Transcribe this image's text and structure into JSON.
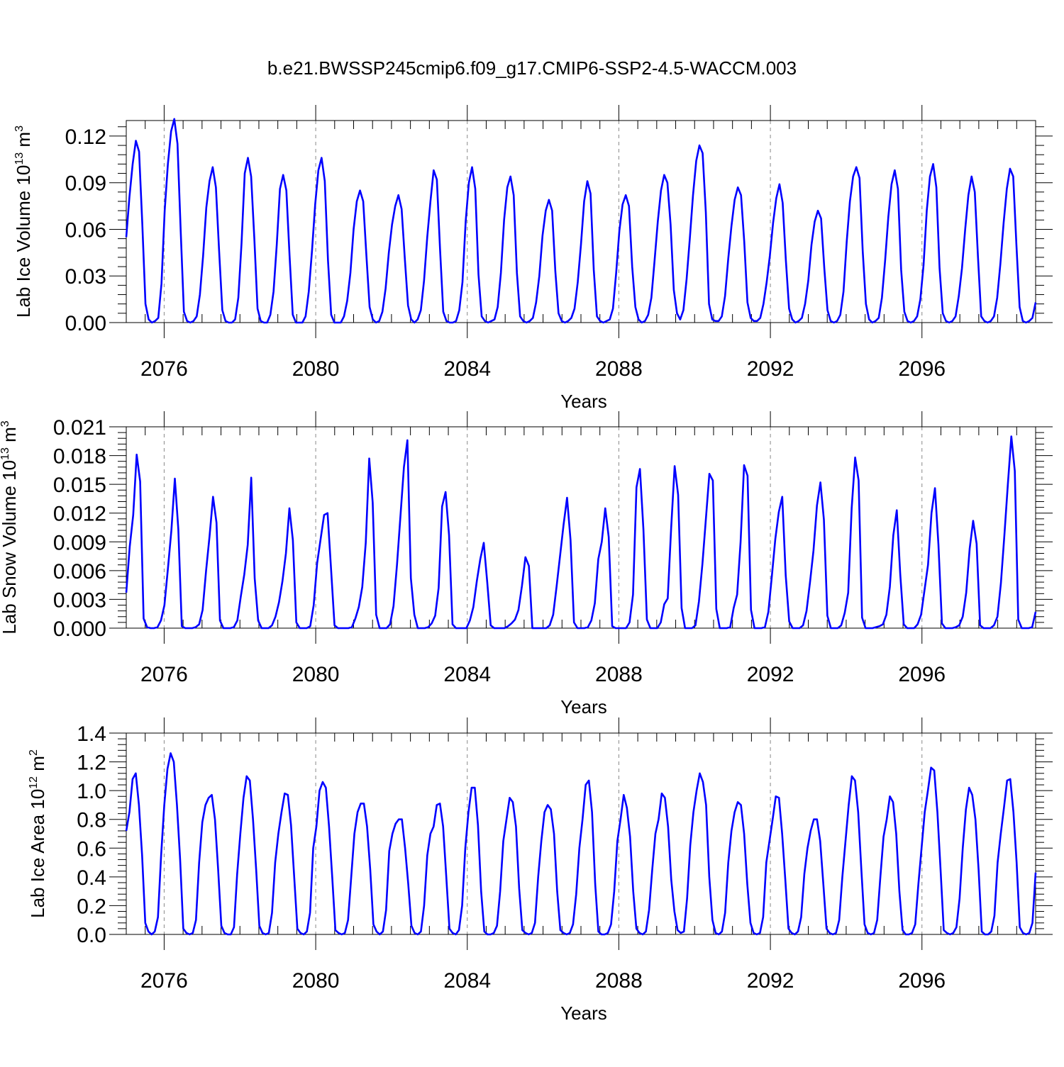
{
  "title": "b.e21.BWSSP245cmip6.f09_g17.CMIP6-SSP2-4.5-WACCM.003",
  "colors": {
    "series": "#0000ff",
    "axis": "#000000",
    "grid": "#888888"
  },
  "chart_data": [
    {
      "type": "line",
      "ylabel_main": "Lab Ice Volume 10",
      "ylabel_exp": "13",
      "ylabel_unit": " m",
      "ylabel_unit_exp": "3",
      "xlabel": "Years",
      "xlim": [
        2075.0,
        2099.0
      ],
      "ylim": [
        0,
        0.13
      ],
      "yticks": [
        0,
        0.03,
        0.06,
        0.09,
        0.12
      ],
      "ytick_labels": [
        "0.00",
        "0.03",
        "0.06",
        "0.09",
        "0.12"
      ],
      "xticks": [
        2076,
        2080,
        2084,
        2088,
        2092,
        2096
      ],
      "xtick_labels": [
        "2076",
        "2080",
        "2084",
        "2088",
        "2092",
        "2096"
      ],
      "grid_vertical": true,
      "series": [
        {
          "values": [
            0.055,
            0.081,
            0.102,
            0.117,
            0.11,
            0.064,
            0.012,
            0.002,
            0.0,
            0.001,
            0.003,
            0.025,
            0.072,
            0.102,
            0.123,
            0.131,
            0.115,
            0.059,
            0.007,
            0.001,
            0.0,
            0.001,
            0.004,
            0.018,
            0.043,
            0.074,
            0.091,
            0.1,
            0.087,
            0.046,
            0.008,
            0.001,
            0.0,
            0.0,
            0.002,
            0.016,
            0.051,
            0.096,
            0.106,
            0.094,
            0.054,
            0.009,
            0.001,
            0.0,
            0.0,
            0.005,
            0.02,
            0.05,
            0.086,
            0.095,
            0.085,
            0.043,
            0.005,
            0.0,
            0.0,
            0.0,
            0.004,
            0.02,
            0.046,
            0.076,
            0.098,
            0.106,
            0.091,
            0.04,
            0.005,
            0.0,
            0.0,
            0.0,
            0.004,
            0.014,
            0.032,
            0.06,
            0.078,
            0.085,
            0.078,
            0.043,
            0.01,
            0.002,
            0.0,
            0.001,
            0.007,
            0.022,
            0.045,
            0.063,
            0.075,
            0.082,
            0.073,
            0.041,
            0.011,
            0.002,
            0.0,
            0.002,
            0.008,
            0.027,
            0.055,
            0.078,
            0.098,
            0.092,
            0.047,
            0.007,
            0.001,
            0.0,
            0.0,
            0.001,
            0.008,
            0.026,
            0.065,
            0.09,
            0.1,
            0.086,
            0.031,
            0.004,
            0.001,
            0.0,
            0.001,
            0.002,
            0.01,
            0.032,
            0.066,
            0.087,
            0.094,
            0.082,
            0.032,
            0.004,
            0.001,
            0.0,
            0.001,
            0.003,
            0.013,
            0.03,
            0.056,
            0.072,
            0.079,
            0.072,
            0.033,
            0.006,
            0.001,
            0.0,
            0.001,
            0.003,
            0.009,
            0.026,
            0.05,
            0.078,
            0.091,
            0.083,
            0.034,
            0.004,
            0.001,
            0.0,
            0.001,
            0.002,
            0.009,
            0.032,
            0.059,
            0.076,
            0.082,
            0.075,
            0.036,
            0.01,
            0.002,
            0.0,
            0.001,
            0.005,
            0.016,
            0.04,
            0.065,
            0.085,
            0.095,
            0.09,
            0.063,
            0.021,
            0.006,
            0.002,
            0.008,
            0.028,
            0.054,
            0.082,
            0.104,
            0.114,
            0.109,
            0.071,
            0.012,
            0.002,
            0.001,
            0.001,
            0.004,
            0.017,
            0.041,
            0.062,
            0.079,
            0.087,
            0.082,
            0.052,
            0.013,
            0.003,
            0.001,
            0.001,
            0.003,
            0.012,
            0.026,
            0.043,
            0.064,
            0.08,
            0.089,
            0.077,
            0.04,
            0.009,
            0.002,
            0.0,
            0.001,
            0.003,
            0.012,
            0.027,
            0.05,
            0.065,
            0.072,
            0.067,
            0.035,
            0.008,
            0.001,
            0.0,
            0.001,
            0.005,
            0.02,
            0.052,
            0.078,
            0.094,
            0.1,
            0.093,
            0.046,
            0.012,
            0.002,
            0.0,
            0.001,
            0.003,
            0.016,
            0.04,
            0.068,
            0.089,
            0.098,
            0.086,
            0.034,
            0.007,
            0.001,
            0.0,
            0.001,
            0.004,
            0.015,
            0.037,
            0.072,
            0.094,
            0.102,
            0.087,
            0.035,
            0.006,
            0.001,
            0.0,
            0.001,
            0.004,
            0.017,
            0.035,
            0.06,
            0.082,
            0.094,
            0.084,
            0.042,
            0.004,
            0.001,
            0.0,
            0.001,
            0.004,
            0.016,
            0.038,
            0.064,
            0.086,
            0.099,
            0.094,
            0.05,
            0.01,
            0.001,
            0.0,
            0.001,
            0.003,
            0.013
          ]
        }
      ]
    },
    {
      "type": "line",
      "ylabel_main": "Lab Snow Volume 10",
      "ylabel_exp": "13",
      "ylabel_unit": " m",
      "ylabel_unit_exp": "3",
      "xlabel": "Years",
      "xlim": [
        2075.0,
        2099.0
      ],
      "ylim": [
        0,
        0.021
      ],
      "yticks": [
        0,
        0.003,
        0.006,
        0.009,
        0.012,
        0.015,
        0.018,
        0.021
      ],
      "ytick_labels": [
        "0.000",
        "0.003",
        "0.006",
        "0.009",
        "0.012",
        "0.015",
        "0.018",
        "0.021"
      ],
      "xticks": [
        2076,
        2080,
        2084,
        2088,
        2092,
        2096
      ],
      "xtick_labels": [
        "2076",
        "2080",
        "2084",
        "2088",
        "2092",
        "2096"
      ],
      "grid_vertical": true,
      "series": [
        {
          "values": [
            0.0037,
            0.0085,
            0.0118,
            0.0181,
            0.0153,
            0.001,
            0.0001,
            0.0,
            0.0,
            0.0001,
            0.0008,
            0.0024,
            0.0062,
            0.0102,
            0.0156,
            0.0103,
            0.0002,
            0.0,
            0.0,
            0.0,
            0.0001,
            0.0004,
            0.0019,
            0.006,
            0.0096,
            0.0137,
            0.011,
            0.0008,
            0.0,
            0.0,
            0.0,
            0.0001,
            0.0008,
            0.0033,
            0.0056,
            0.0087,
            0.0157,
            0.0052,
            0.0008,
            0.0,
            0.0,
            0.0,
            0.0003,
            0.0012,
            0.0027,
            0.0049,
            0.0078,
            0.0125,
            0.0092,
            0.0006,
            0.0,
            0.0,
            0.0,
            0.0002,
            0.0024,
            0.0068,
            0.0093,
            0.0118,
            0.012,
            0.0062,
            0.0003,
            0.0,
            0.0,
            0.0,
            0.0,
            0.0001,
            0.001,
            0.0022,
            0.0043,
            0.0089,
            0.0177,
            0.0131,
            0.0014,
            0.0,
            0.0,
            0.0,
            0.0004,
            0.0023,
            0.0066,
            0.0117,
            0.0168,
            0.0196,
            0.0052,
            0.0014,
            0.0,
            0.0,
            0.0,
            0.0001,
            0.0005,
            0.0013,
            0.0042,
            0.0127,
            0.0142,
            0.0097,
            0.0004,
            0.0,
            0.0,
            0.0,
            0.0,
            0.0008,
            0.0022,
            0.0049,
            0.0072,
            0.0089,
            0.0048,
            0.0003,
            0.0,
            0.0,
            0.0,
            0.0,
            0.0002,
            0.0005,
            0.0009,
            0.0019,
            0.0044,
            0.0074,
            0.0065,
            0.0,
            0.0,
            0.0,
            0.0,
            0.0,
            0.0003,
            0.0014,
            0.0044,
            0.0076,
            0.0108,
            0.0136,
            0.0092,
            0.0006,
            0.0,
            0.0,
            0.0,
            0.0001,
            0.0008,
            0.0026,
            0.0072,
            0.009,
            0.0125,
            0.0095,
            0.0002,
            0.0,
            0.0,
            0.0,
            0.0,
            0.0006,
            0.0035,
            0.0147,
            0.0166,
            0.0103,
            0.0009,
            0.0,
            0.0,
            0.0,
            0.0006,
            0.0025,
            0.0031,
            0.0105,
            0.0169,
            0.0139,
            0.0021,
            0.0,
            0.0,
            0.0,
            0.0003,
            0.0028,
            0.0067,
            0.0114,
            0.0161,
            0.0154,
            0.002,
            0.0,
            0.0,
            0.0,
            0.0001,
            0.0021,
            0.0035,
            0.009,
            0.017,
            0.0159,
            0.0019,
            0.0,
            0.0,
            0.0,
            0.0001,
            0.0017,
            0.0054,
            0.0093,
            0.0121,
            0.0137,
            0.0055,
            0.0007,
            0.0,
            0.0,
            0.0,
            0.0003,
            0.0018,
            0.0048,
            0.0081,
            0.0128,
            0.0152,
            0.0113,
            0.0013,
            0.0,
            0.0,
            0.0,
            0.0003,
            0.0016,
            0.0037,
            0.0125,
            0.0178,
            0.0154,
            0.0011,
            0.0,
            0.0,
            0.0,
            0.0001,
            0.0002,
            0.0004,
            0.0014,
            0.0043,
            0.0097,
            0.0123,
            0.0056,
            0.0004,
            0.0,
            0.0,
            0.0,
            0.0004,
            0.0014,
            0.004,
            0.0066,
            0.012,
            0.0146,
            0.0087,
            0.0005,
            0.0,
            0.0,
            0.0,
            0.0001,
            0.0003,
            0.0012,
            0.0037,
            0.0083,
            0.0112,
            0.0088,
            0.0003,
            0.0,
            0.0,
            0.0,
            0.0003,
            0.0012,
            0.0047,
            0.0097,
            0.015,
            0.02,
            0.0164,
            0.0009,
            0.0,
            0.0,
            0.0,
            0.0001,
            0.0017
          ]
        }
      ]
    },
    {
      "type": "line",
      "ylabel_main": "Lab Ice Area 10",
      "ylabel_exp": "12",
      "ylabel_unit": " m",
      "ylabel_unit_exp": "2",
      "xlabel": "Years",
      "xlim": [
        2075.0,
        2099.0
      ],
      "ylim": [
        0,
        1.4
      ],
      "yticks": [
        0,
        0.2,
        0.4,
        0.6,
        0.8,
        1.0,
        1.2,
        1.4
      ],
      "ytick_labels": [
        "0.0",
        "0.2",
        "0.4",
        "0.6",
        "0.8",
        "1.0",
        "1.2",
        "1.4"
      ],
      "xticks": [
        2076,
        2080,
        2084,
        2088,
        2092,
        2096
      ],
      "xtick_labels": [
        "2076",
        "2080",
        "2084",
        "2088",
        "2092",
        "2096"
      ],
      "grid_vertical": true,
      "series": [
        {
          "values": [
            0.72,
            0.85,
            1.08,
            1.12,
            0.9,
            0.55,
            0.08,
            0.02,
            0.0,
            0.02,
            0.12,
            0.55,
            0.9,
            1.15,
            1.26,
            1.2,
            0.9,
            0.52,
            0.04,
            0.01,
            0.0,
            0.01,
            0.1,
            0.5,
            0.78,
            0.9,
            0.95,
            0.97,
            0.8,
            0.45,
            0.06,
            0.01,
            0.0,
            0.0,
            0.05,
            0.42,
            0.7,
            0.95,
            1.1,
            1.07,
            0.8,
            0.45,
            0.06,
            0.01,
            0.0,
            0.01,
            0.15,
            0.5,
            0.7,
            0.85,
            0.98,
            0.97,
            0.76,
            0.4,
            0.04,
            0.01,
            0.0,
            0.02,
            0.15,
            0.6,
            0.75,
            1.0,
            1.06,
            1.02,
            0.75,
            0.4,
            0.03,
            0.01,
            0.0,
            0.01,
            0.1,
            0.4,
            0.7,
            0.85,
            0.91,
            0.91,
            0.75,
            0.45,
            0.07,
            0.02,
            0.0,
            0.02,
            0.17,
            0.58,
            0.7,
            0.77,
            0.8,
            0.8,
            0.6,
            0.35,
            0.06,
            0.01,
            0.0,
            0.02,
            0.2,
            0.55,
            0.7,
            0.75,
            0.9,
            0.91,
            0.75,
            0.4,
            0.04,
            0.01,
            0.0,
            0.03,
            0.2,
            0.6,
            0.85,
            1.02,
            1.02,
            0.76,
            0.3,
            0.02,
            0.0,
            0.0,
            0.01,
            0.06,
            0.3,
            0.65,
            0.8,
            0.95,
            0.92,
            0.75,
            0.32,
            0.03,
            0.01,
            0.0,
            0.01,
            0.08,
            0.4,
            0.65,
            0.85,
            0.9,
            0.87,
            0.7,
            0.3,
            0.03,
            0.01,
            0.0,
            0.01,
            0.07,
            0.28,
            0.6,
            0.8,
            1.04,
            1.07,
            0.85,
            0.35,
            0.02,
            0.0,
            0.0,
            0.01,
            0.07,
            0.3,
            0.65,
            0.8,
            0.97,
            0.88,
            0.68,
            0.3,
            0.04,
            0.01,
            0.0,
            0.02,
            0.17,
            0.45,
            0.7,
            0.8,
            0.98,
            0.95,
            0.75,
            0.38,
            0.16,
            0.03,
            0.01,
            0.02,
            0.25,
            0.62,
            0.85,
            1.0,
            1.12,
            1.06,
            0.9,
            0.4,
            0.1,
            0.01,
            0.0,
            0.02,
            0.15,
            0.5,
            0.72,
            0.85,
            0.92,
            0.9,
            0.7,
            0.35,
            0.08,
            0.01,
            0.0,
            0.01,
            0.12,
            0.5,
            0.65,
            0.8,
            0.96,
            0.95,
            0.7,
            0.38,
            0.04,
            0.01,
            0.0,
            0.02,
            0.12,
            0.42,
            0.6,
            0.72,
            0.8,
            0.8,
            0.65,
            0.35,
            0.04,
            0.01,
            0.0,
            0.01,
            0.1,
            0.4,
            0.65,
            0.9,
            1.1,
            1.07,
            0.85,
            0.45,
            0.07,
            0.01,
            0.0,
            0.01,
            0.1,
            0.4,
            0.68,
            0.8,
            0.96,
            0.92,
            0.7,
            0.3,
            0.03,
            0.0,
            0.0,
            0.01,
            0.07,
            0.35,
            0.6,
            0.85,
            1.0,
            1.16,
            1.14,
            0.85,
            0.45,
            0.03,
            0.01,
            0.0,
            0.01,
            0.05,
            0.25,
            0.6,
            0.87,
            1.02,
            0.97,
            0.8,
            0.45,
            0.02,
            0.0,
            0.0,
            0.02,
            0.13,
            0.5,
            0.7,
            0.88,
            1.07,
            1.08,
            0.85,
            0.5,
            0.05,
            0.01,
            0.0,
            0.01,
            0.08,
            0.43
          ]
        }
      ]
    }
  ]
}
